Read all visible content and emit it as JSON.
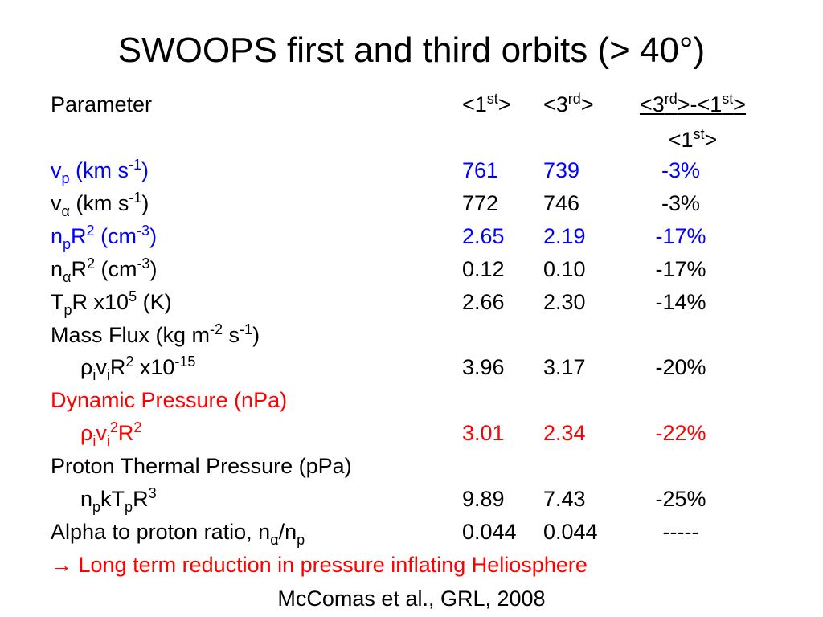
{
  "title": "SWOOPS first and third orbits (> 40°)",
  "table": {
    "header": {
      "parameter": "Parameter",
      "columns": [
        [
          {
            "text": "<1"
          },
          {
            "text": "st",
            "style": "sup"
          },
          {
            "text": ">"
          }
        ],
        [
          {
            "text": "<3"
          },
          {
            "text": "rd",
            "style": "sup"
          },
          {
            "text": ">"
          }
        ],
        {
          "numerator": [
            {
              "text": "<3"
            },
            {
              "text": "rd",
              "style": "sup"
            },
            {
              "text": ">-<1"
            },
            {
              "text": "st",
              "style": "sup"
            },
            {
              "text": ">"
            }
          ],
          "denominator": [
            {
              "text": "<1"
            },
            {
              "text": "st",
              "style": "sup"
            },
            {
              "text": ">"
            }
          ]
        }
      ]
    },
    "rows": [
      {
        "label": [
          {
            "text": "v"
          },
          {
            "text": "p",
            "style": "sub"
          },
          {
            "text": " (km s"
          },
          {
            "text": "-1",
            "style": "sup"
          },
          {
            "text": ")"
          }
        ],
        "color": "#0000ff",
        "cells": [
          "761",
          "739",
          "-3%"
        ]
      },
      {
        "label": [
          {
            "text": "v"
          },
          {
            "text": "α",
            "style": "sub"
          },
          {
            "text": " (km s"
          },
          {
            "text": "-1",
            "style": "sup"
          },
          {
            "text": ")"
          }
        ],
        "color": "#000000",
        "cells": [
          "772",
          "746",
          "-3%"
        ]
      },
      {
        "label": [
          {
            "text": "n"
          },
          {
            "text": "p",
            "style": "sub"
          },
          {
            "text": "R"
          },
          {
            "text": "2",
            "style": "sup"
          },
          {
            "text": " (cm"
          },
          {
            "text": "-3",
            "style": "sup"
          },
          {
            "text": ")"
          }
        ],
        "color": "#0000ff",
        "cells": [
          "2.65",
          "2.19",
          "-17%"
        ]
      },
      {
        "label": [
          {
            "text": "n"
          },
          {
            "text": "α",
            "style": "sub"
          },
          {
            "text": "R"
          },
          {
            "text": "2",
            "style": "sup"
          },
          {
            "text": " (cm"
          },
          {
            "text": "-3",
            "style": "sup"
          },
          {
            "text": ")"
          }
        ],
        "color": "#000000",
        "cells": [
          "0.12",
          "0.10",
          "-17%"
        ]
      },
      {
        "label": [
          {
            "text": "T"
          },
          {
            "text": "p",
            "style": "sub"
          },
          {
            "text": "R x10"
          },
          {
            "text": "5",
            "style": "sup"
          },
          {
            "text": " (K)"
          }
        ],
        "color": "#000000",
        "cells": [
          "2.66",
          "2.30",
          "-14%"
        ]
      },
      {
        "label": [
          {
            "text": "Mass Flux (kg m"
          },
          {
            "text": "-2",
            "style": "sup"
          },
          {
            "text": " s"
          },
          {
            "text": "-1",
            "style": "sup"
          },
          {
            "text": ")"
          }
        ],
        "color": "#000000",
        "cells": []
      },
      {
        "label": [
          {
            "text": "ρ"
          },
          {
            "text": "i",
            "style": "sub"
          },
          {
            "text": "v"
          },
          {
            "text": "i",
            "style": "sub"
          },
          {
            "text": "R"
          },
          {
            "text": "2",
            "style": "sup"
          },
          {
            "text": " x10"
          },
          {
            "text": "-15",
            "style": "sup"
          }
        ],
        "indent": true,
        "color": "#000000",
        "cells": [
          "3.96",
          "3.17",
          "-20%"
        ]
      },
      {
        "label": [
          {
            "text": "Dynamic Pressure (nPa)"
          }
        ],
        "color": "#ff0000",
        "cells": []
      },
      {
        "label": [
          {
            "text": "ρ"
          },
          {
            "text": "i",
            "style": "sub"
          },
          {
            "text": "v"
          },
          {
            "text": "i",
            "style": "sub"
          },
          {
            "text": "2",
            "style": "sup"
          },
          {
            "text": "R"
          },
          {
            "text": "2",
            "style": "sup"
          }
        ],
        "indent": true,
        "color": "#ff0000",
        "cells": [
          "3.01",
          "2.34",
          "-22%"
        ]
      },
      {
        "label": [
          {
            "text": "Proton Thermal Pressure (pPa)"
          }
        ],
        "color": "#000000",
        "cells": []
      },
      {
        "label": [
          {
            "text": "n"
          },
          {
            "text": "p",
            "style": "sub"
          },
          {
            "text": "kT"
          },
          {
            "text": "p",
            "style": "sub"
          },
          {
            "text": "R"
          },
          {
            "text": "3",
            "style": "sup"
          }
        ],
        "indent": true,
        "color": "#000000",
        "cells": [
          "9.89",
          "7.43",
          "-25%"
        ]
      },
      {
        "label": [
          {
            "text": "Alpha to proton ratio, n"
          },
          {
            "text": "α",
            "style": "sub"
          },
          {
            "text": "/n"
          },
          {
            "text": "p",
            "style": "sub"
          }
        ],
        "color": "#000000",
        "cells": [
          "0.044",
          "0.044",
          "-----"
        ]
      }
    ]
  },
  "conclusion": "→ Long term reduction in pressure inflating Heliosphere",
  "citation": "McComas et al., GRL, 2008"
}
